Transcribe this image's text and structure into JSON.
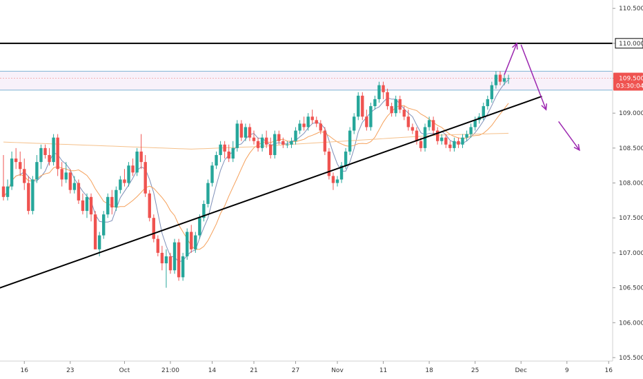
{
  "chart_data": {
    "type": "candlestick",
    "title": "",
    "xlabel": "",
    "ylabel": "",
    "ylim": [
      105.45,
      110.62
    ],
    "y_ticks": [
      "110.500",
      "110.000",
      "109.500",
      "109.000",
      "108.500",
      "108.000",
      "107.500",
      "107.000",
      "106.500",
      "106.000",
      "105.500"
    ],
    "x_ticks": [
      "16",
      "23",
      "Oct",
      "21:00",
      "14",
      "21",
      "27",
      "Nov",
      "11",
      "18",
      "25",
      "Dec",
      "9",
      "16"
    ],
    "price_badge": {
      "value": "109.500",
      "countdown": "03:30:04",
      "color": "#ef5350"
    },
    "resistance_level": {
      "value": 110.0,
      "label": "110.000",
      "color": "#000000"
    },
    "resistance_zone": {
      "from": 109.33,
      "to": 109.6,
      "color": "#7fb3d5"
    },
    "trendline": {
      "from_index": -42,
      "from_price": 105.63,
      "to_index": 129,
      "to_price": 109.24,
      "color": "#000000"
    },
    "forecast_arrows": [
      {
        "from_index": 120,
        "from_price": 109.55,
        "to_index": 123,
        "to_price": 110.0
      },
      {
        "from_index": 124,
        "from_price": 109.98,
        "to_index": 130,
        "to_price": 109.05
      },
      {
        "from_index": 133,
        "from_price": 108.88,
        "to_index": 138,
        "to_price": 108.47
      }
    ],
    "colors": {
      "up": "#26a69a",
      "down": "#ef5350",
      "ma_fast": "#7e8fb8",
      "ma_slow": "#f5a05a",
      "ma_long": "#f5c08a",
      "arrow": "#9c27b0"
    },
    "candles": [
      [
        107.95,
        108.4,
        107.75,
        107.8
      ],
      [
        107.8,
        108.05,
        107.75,
        107.95
      ],
      [
        107.95,
        108.45,
        107.9,
        108.35
      ],
      [
        108.35,
        108.5,
        108.2,
        108.3
      ],
      [
        108.3,
        108.45,
        108.1,
        108.2
      ],
      [
        108.2,
        108.35,
        107.9,
        108.0
      ],
      [
        108.0,
        108.1,
        107.55,
        107.6
      ],
      [
        107.6,
        108.1,
        107.55,
        108.05
      ],
      [
        108.05,
        108.4,
        108.0,
        108.3
      ],
      [
        108.3,
        108.55,
        108.2,
        108.5
      ],
      [
        108.5,
        108.55,
        108.35,
        108.4
      ],
      [
        108.4,
        108.5,
        108.25,
        108.3
      ],
      [
        108.3,
        108.7,
        108.25,
        108.65
      ],
      [
        108.65,
        108.7,
        108.1,
        108.2
      ],
      [
        108.2,
        108.3,
        107.95,
        108.05
      ],
      [
        108.05,
        108.3,
        108.0,
        108.15
      ],
      [
        108.15,
        108.2,
        107.85,
        107.9
      ],
      [
        107.9,
        108.1,
        107.85,
        108.0
      ],
      [
        108.0,
        108.05,
        107.7,
        107.75
      ],
      [
        107.75,
        107.85,
        107.55,
        107.6
      ],
      [
        107.6,
        107.85,
        107.5,
        107.8
      ],
      [
        107.8,
        107.85,
        107.45,
        107.55
      ],
      [
        107.55,
        107.6,
        107.05,
        107.05
      ],
      [
        107.05,
        107.3,
        106.95,
        107.25
      ],
      [
        107.25,
        107.6,
        107.2,
        107.55
      ],
      [
        107.55,
        107.85,
        107.5,
        107.8
      ],
      [
        107.8,
        107.9,
        107.55,
        107.65
      ],
      [
        107.65,
        107.95,
        107.6,
        107.9
      ],
      [
        107.9,
        108.1,
        107.85,
        108.05
      ],
      [
        108.05,
        108.2,
        107.95,
        108.0
      ],
      [
        108.0,
        108.3,
        107.95,
        108.25
      ],
      [
        108.25,
        108.35,
        108.1,
        108.15
      ],
      [
        108.15,
        108.5,
        108.1,
        108.45
      ],
      [
        108.45,
        108.7,
        108.2,
        108.3
      ],
      [
        108.3,
        108.4,
        107.8,
        107.85
      ],
      [
        107.85,
        107.9,
        107.45,
        107.5
      ],
      [
        107.5,
        107.55,
        107.15,
        107.2
      ],
      [
        107.2,
        107.25,
        106.95,
        107.0
      ],
      [
        107.0,
        107.1,
        106.75,
        106.85
      ],
      [
        106.85,
        107.05,
        106.5,
        106.95
      ],
      [
        106.95,
        107.0,
        106.7,
        106.75
      ],
      [
        106.75,
        107.2,
        106.7,
        107.15
      ],
      [
        107.15,
        107.2,
        106.6,
        106.65
      ],
      [
        106.65,
        107.0,
        106.6,
        106.95
      ],
      [
        106.95,
        107.35,
        106.9,
        107.3
      ],
      [
        107.3,
        107.4,
        107.0,
        107.05
      ],
      [
        107.05,
        107.3,
        107.0,
        107.25
      ],
      [
        107.25,
        107.55,
        107.2,
        107.5
      ],
      [
        107.5,
        107.75,
        107.45,
        107.7
      ],
      [
        107.7,
        108.05,
        107.65,
        108.0
      ],
      [
        108.0,
        108.3,
        107.95,
        108.25
      ],
      [
        108.25,
        108.45,
        108.2,
        108.4
      ],
      [
        108.4,
        108.6,
        108.3,
        108.55
      ],
      [
        108.55,
        108.6,
        108.35,
        108.45
      ],
      [
        108.45,
        108.55,
        108.3,
        108.35
      ],
      [
        108.35,
        108.6,
        108.3,
        108.5
      ],
      [
        108.5,
        108.9,
        108.45,
        108.85
      ],
      [
        108.85,
        108.9,
        108.6,
        108.65
      ],
      [
        108.65,
        108.85,
        108.6,
        108.8
      ],
      [
        108.8,
        108.85,
        108.6,
        108.65
      ],
      [
        108.65,
        108.75,
        108.55,
        108.6
      ],
      [
        108.6,
        108.65,
        108.45,
        108.5
      ],
      [
        108.5,
        108.7,
        108.45,
        108.65
      ],
      [
        108.65,
        108.75,
        108.5,
        108.55
      ],
      [
        108.55,
        108.65,
        108.35,
        108.4
      ],
      [
        108.4,
        108.75,
        108.35,
        108.7
      ],
      [
        108.7,
        108.75,
        108.55,
        108.6
      ],
      [
        108.6,
        108.65,
        108.5,
        108.55
      ],
      [
        108.55,
        108.6,
        108.5,
        108.55
      ],
      [
        108.55,
        108.65,
        108.5,
        108.6
      ],
      [
        108.6,
        108.8,
        108.55,
        108.75
      ],
      [
        108.75,
        108.9,
        108.7,
        108.85
      ],
      [
        108.85,
        108.95,
        108.75,
        108.8
      ],
      [
        108.8,
        109.0,
        108.75,
        108.95
      ],
      [
        108.95,
        109.05,
        108.85,
        108.9
      ],
      [
        108.9,
        108.95,
        108.8,
        108.85
      ],
      [
        108.85,
        108.9,
        108.7,
        108.75
      ],
      [
        108.75,
        108.8,
        108.4,
        108.45
      ],
      [
        108.45,
        108.5,
        108.05,
        108.1
      ],
      [
        108.1,
        108.15,
        107.9,
        108.0
      ],
      [
        108.0,
        108.1,
        107.95,
        108.05
      ],
      [
        108.05,
        108.3,
        108.0,
        108.25
      ],
      [
        108.25,
        108.5,
        108.2,
        108.45
      ],
      [
        108.45,
        108.8,
        108.4,
        108.75
      ],
      [
        108.75,
        109.0,
        108.7,
        108.95
      ],
      [
        108.95,
        109.3,
        108.9,
        109.25
      ],
      [
        109.25,
        109.3,
        108.9,
        108.95
      ],
      [
        108.95,
        109.05,
        108.75,
        108.8
      ],
      [
        108.8,
        109.15,
        108.75,
        109.1
      ],
      [
        109.1,
        109.25,
        109.05,
        109.2
      ],
      [
        109.2,
        109.45,
        109.15,
        109.4
      ],
      [
        109.4,
        109.45,
        109.2,
        109.3
      ],
      [
        109.3,
        109.35,
        109.05,
        109.1
      ],
      [
        109.1,
        109.15,
        108.95,
        109.0
      ],
      [
        109.0,
        109.25,
        108.95,
        109.2
      ],
      [
        109.2,
        109.25,
        109.0,
        109.05
      ],
      [
        109.05,
        109.1,
        108.9,
        108.95
      ],
      [
        108.95,
        109.05,
        108.75,
        108.8
      ],
      [
        108.8,
        108.85,
        108.7,
        108.75
      ],
      [
        108.75,
        108.8,
        108.55,
        108.6
      ],
      [
        108.6,
        108.65,
        108.45,
        108.5
      ],
      [
        108.5,
        108.85,
        108.45,
        108.8
      ],
      [
        108.8,
        108.95,
        108.75,
        108.9
      ],
      [
        108.9,
        108.95,
        108.7,
        108.75
      ],
      [
        108.75,
        108.8,
        108.55,
        108.6
      ],
      [
        108.6,
        108.7,
        108.55,
        108.65
      ],
      [
        108.65,
        108.7,
        108.5,
        108.55
      ],
      [
        108.55,
        108.6,
        108.45,
        108.5
      ],
      [
        108.5,
        108.65,
        108.45,
        108.6
      ],
      [
        108.6,
        108.65,
        108.5,
        108.55
      ],
      [
        108.55,
        108.7,
        108.5,
        108.65
      ],
      [
        108.65,
        108.75,
        108.6,
        108.7
      ],
      [
        108.7,
        108.85,
        108.65,
        108.8
      ],
      [
        108.8,
        108.95,
        108.75,
        108.9
      ],
      [
        108.9,
        109.0,
        108.85,
        108.95
      ],
      [
        108.95,
        109.15,
        108.9,
        109.1
      ],
      [
        109.1,
        109.25,
        109.05,
        109.2
      ],
      [
        109.2,
        109.45,
        109.15,
        109.4
      ],
      [
        109.4,
        109.6,
        109.35,
        109.55
      ],
      [
        109.55,
        109.6,
        109.4,
        109.45
      ],
      [
        109.45,
        109.55,
        109.4,
        109.5
      ],
      [
        109.5,
        109.55,
        109.42,
        109.5
      ]
    ]
  }
}
